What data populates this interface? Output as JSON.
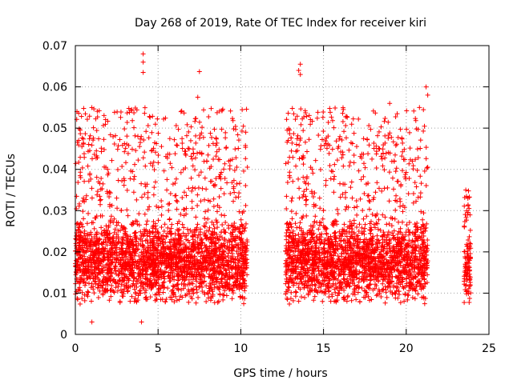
{
  "chart_data": {
    "type": "scatter",
    "title": "Day 268 of 2019, Rate Of TEC Index for receiver kiri",
    "xlabel": "GPS time / hours",
    "ylabel": "ROTI / TECUs",
    "xlim": [
      0,
      25
    ],
    "ylim": [
      0,
      0.07
    ],
    "xticks": [
      0,
      5,
      10,
      15,
      20,
      25
    ],
    "yticks": [
      0,
      0.01,
      0.02,
      0.03,
      0.04,
      0.05,
      0.06,
      0.07
    ],
    "xtick_labels": [
      "0",
      "5",
      "10",
      "15",
      "20",
      "25"
    ],
    "ytick_labels": [
      "0",
      "0.01",
      "0.02",
      "0.03",
      "0.04",
      "0.05",
      "0.06",
      "0.07"
    ],
    "grid": true,
    "marker": "+",
    "color": "#ff0000",
    "series": [
      {
        "name": "kiri",
        "segments": [
          {
            "x_range": [
              0.0,
              10.4
            ],
            "y_base": [
              0.005,
              0.03
            ]
          },
          {
            "x_range": [
              12.7,
              21.3
            ],
            "y_base": [
              0.005,
              0.03
            ]
          },
          {
            "x_range": [
              23.5,
              23.9
            ],
            "y_base": [
              0.005,
              0.025
            ]
          }
        ],
        "notable_points": [
          {
            "x": 4.1,
            "y": 0.068
          },
          {
            "x": 4.1,
            "y": 0.066
          },
          {
            "x": 4.1,
            "y": 0.0635
          },
          {
            "x": 7.5,
            "y": 0.0637
          },
          {
            "x": 13.6,
            "y": 0.0655
          },
          {
            "x": 13.5,
            "y": 0.064
          },
          {
            "x": 13.6,
            "y": 0.063
          },
          {
            "x": 0.1,
            "y": 0.054
          },
          {
            "x": 21.2,
            "y": 0.06
          },
          {
            "x": 21.3,
            "y": 0.058
          },
          {
            "x": 20.8,
            "y": 0.055
          },
          {
            "x": 19.0,
            "y": 0.056
          },
          {
            "x": 16.2,
            "y": 0.0545
          },
          {
            "x": 3.4,
            "y": 0.0545
          },
          {
            "x": 7.4,
            "y": 0.0575
          },
          {
            "x": 10.3,
            "y": 0.049
          },
          {
            "x": 12.8,
            "y": 0.0495
          },
          {
            "x": 4.0,
            "y": 0.003
          },
          {
            "x": 1.0,
            "y": 0.003
          },
          {
            "x": 23.6,
            "y": 0.035
          }
        ]
      }
    ]
  }
}
